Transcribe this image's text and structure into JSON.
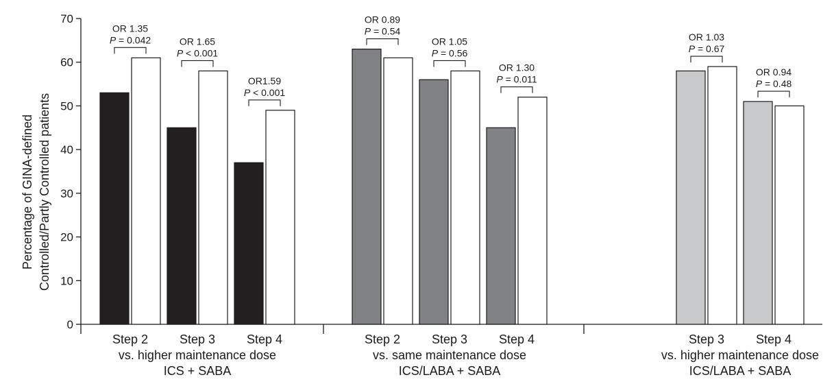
{
  "chart_data": {
    "type": "bar",
    "ylabel_line1": "Percentage of GINA-defined",
    "ylabel_line2": "Controlled/Partly Controlled patients",
    "ylim": [
      0,
      70
    ],
    "yticks": [
      0,
      10,
      20,
      30,
      40,
      50,
      60,
      70
    ],
    "grid": false,
    "legend": "none",
    "groups": [
      {
        "label_line1": "vs. higher maintenance dose",
        "label_line2": "ICS + SABA",
        "color": "#231f20",
        "categories": [
          {
            "label": "Step 2",
            "comparator": 53,
            "open": 61,
            "or_text": "OR 1.35",
            "p_prefix": "P",
            "p_rest": " = 0.042"
          },
          {
            "label": "Step 3",
            "comparator": 45,
            "open": 58,
            "or_text": "OR 1.65",
            "p_prefix": "P",
            "p_rest": " < 0.001"
          },
          {
            "label": "Step 4",
            "comparator": 37,
            "open": 49,
            "or_text": "OR1.59",
            "p_prefix": "P",
            "p_rest": " < 0.001"
          }
        ]
      },
      {
        "label_line1": "vs. same maintenance dose",
        "label_line2": "ICS/LABA + SABA",
        "color": "#808285",
        "categories": [
          {
            "label": "Step 2",
            "comparator": 63,
            "open": 61,
            "or_text": "OR 0.89",
            "p_prefix": "P",
            "p_rest": " = 0.54"
          },
          {
            "label": "Step 3",
            "comparator": 56,
            "open": 58,
            "or_text": "OR 1.05",
            "p_prefix": "P",
            "p_rest": " = 0.56"
          },
          {
            "label": "Step 4",
            "comparator": 45,
            "open": 52,
            "or_text": "OR 1.30",
            "p_prefix": "P",
            "p_rest": " = 0.011"
          }
        ]
      },
      {
        "label_line1": "vs. higher maintenance dose",
        "label_line2": "ICS/LABA + SABA",
        "color": "#c8c9cb",
        "categories": [
          {
            "label": "Step 3",
            "comparator": 58,
            "open": 59,
            "or_text": "OR 1.03",
            "p_prefix": "P",
            "p_rest": " = 0.67"
          },
          {
            "label": "Step 4",
            "comparator": 51,
            "open": 50,
            "or_text": "OR 0.94",
            "p_prefix": "P",
            "p_rest": " = 0.48"
          }
        ]
      }
    ]
  }
}
